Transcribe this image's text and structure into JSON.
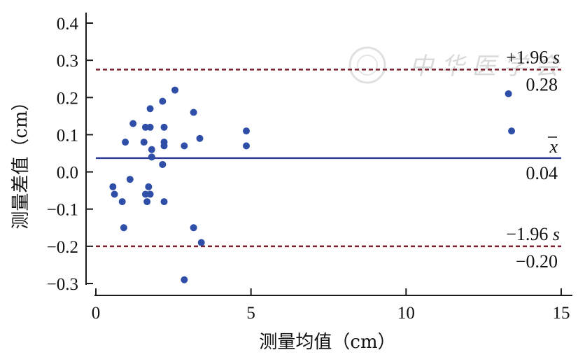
{
  "chart_data": {
    "type": "scatter",
    "xlabel": "测量均值（cm）",
    "ylabel": "测量差值（cm）",
    "xlim": [
      0,
      15
    ],
    "ylim": [
      -0.3,
      0.4
    ],
    "xticks": [
      "0",
      "5",
      "10",
      "15"
    ],
    "yticks": [
      "0.4",
      "0.3",
      "0.2",
      "0.1",
      "0.0",
      "−0.1",
      "−0.2",
      "−0.3"
    ],
    "grid": false,
    "points": [
      {
        "x": 0.55,
        "y": -0.04
      },
      {
        "x": 0.6,
        "y": -0.06
      },
      {
        "x": 0.85,
        "y": -0.08
      },
      {
        "x": 0.9,
        "y": -0.15
      },
      {
        "x": 0.95,
        "y": 0.08
      },
      {
        "x": 1.1,
        "y": -0.02
      },
      {
        "x": 1.2,
        "y": 0.13
      },
      {
        "x": 1.55,
        "y": 0.08
      },
      {
        "x": 1.6,
        "y": 0.12
      },
      {
        "x": 1.6,
        "y": -0.06
      },
      {
        "x": 1.65,
        "y": -0.08
      },
      {
        "x": 1.7,
        "y": -0.04
      },
      {
        "x": 1.75,
        "y": 0.17
      },
      {
        "x": 1.75,
        "y": 0.12
      },
      {
        "x": 1.75,
        "y": -0.06
      },
      {
        "x": 1.8,
        "y": 0.06
      },
      {
        "x": 1.8,
        "y": 0.04
      },
      {
        "x": 2.15,
        "y": 0.19
      },
      {
        "x": 2.15,
        "y": 0.02
      },
      {
        "x": 2.2,
        "y": 0.12
      },
      {
        "x": 2.2,
        "y": 0.08
      },
      {
        "x": 2.2,
        "y": 0.07
      },
      {
        "x": 2.2,
        "y": -0.08
      },
      {
        "x": 2.55,
        "y": 0.22
      },
      {
        "x": 2.85,
        "y": 0.07
      },
      {
        "x": 2.85,
        "y": -0.29
      },
      {
        "x": 3.15,
        "y": 0.16
      },
      {
        "x": 3.15,
        "y": -0.15
      },
      {
        "x": 3.35,
        "y": 0.09
      },
      {
        "x": 3.4,
        "y": -0.19
      },
      {
        "x": 4.85,
        "y": 0.11
      },
      {
        "x": 4.85,
        "y": 0.07
      },
      {
        "x": 13.3,
        "y": 0.21
      },
      {
        "x": 13.4,
        "y": 0.11
      }
    ],
    "reference_lines": [
      {
        "y": 0.275,
        "style": "dashed",
        "color": "#7a1f2b",
        "label": "+1.96 s",
        "value_label": "0.28"
      },
      {
        "y": 0.037,
        "style": "solid",
        "color": "#2e3a99",
        "label": "x̄",
        "value_label": "0.04"
      },
      {
        "y": -0.2,
        "style": "dashed",
        "color": "#7a1f2b",
        "label": "−1.96 s",
        "value_label": "−0.20"
      }
    ],
    "point_color": "#2f4ea8"
  },
  "watermark": {
    "text": "中 华 医 学 会"
  }
}
